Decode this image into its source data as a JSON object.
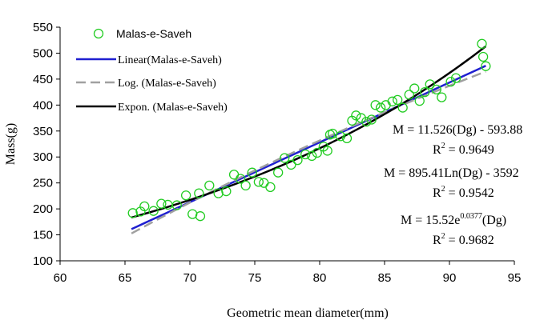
{
  "chart_data": {
    "type": "scatter",
    "xlabel": "Geometric mean diameter(mm)",
    "ylabel": "Mass(g)",
    "xlim": [
      60,
      95
    ],
    "ylim": [
      100,
      550
    ],
    "x_ticks": [
      60,
      65,
      70,
      75,
      80,
      85,
      90,
      95
    ],
    "y_ticks": [
      100,
      150,
      200,
      250,
      300,
      350,
      400,
      450,
      500,
      550
    ],
    "grid": false,
    "legend_placement": "top-left",
    "series": [
      {
        "name": "Malas-e-Saveh",
        "kind": "points",
        "marker": "open-circle",
        "color": "#22cc22",
        "points": [
          [
            65.6,
            192
          ],
          [
            66.2,
            195
          ],
          [
            66.5,
            205
          ],
          [
            67.2,
            196
          ],
          [
            67.8,
            210
          ],
          [
            68.3,
            208
          ],
          [
            69.0,
            207
          ],
          [
            69.7,
            226
          ],
          [
            70.2,
            190
          ],
          [
            70.8,
            186
          ],
          [
            70.7,
            230
          ],
          [
            71.5,
            245
          ],
          [
            72.2,
            230
          ],
          [
            72.8,
            234
          ],
          [
            73.4,
            266
          ],
          [
            73.9,
            258
          ],
          [
            74.3,
            245
          ],
          [
            74.8,
            270
          ],
          [
            75.3,
            252
          ],
          [
            75.7,
            250
          ],
          [
            76.2,
            242
          ],
          [
            76.8,
            270
          ],
          [
            77.3,
            298
          ],
          [
            77.8,
            285
          ],
          [
            78.3,
            294
          ],
          [
            78.9,
            305
          ],
          [
            79.4,
            302
          ],
          [
            79.8,
            308
          ],
          [
            80.3,
            320
          ],
          [
            80.6,
            312
          ],
          [
            80.8,
            343
          ],
          [
            81.0,
            345
          ],
          [
            81.6,
            340
          ],
          [
            82.1,
            336
          ],
          [
            82.5,
            370
          ],
          [
            82.8,
            380
          ],
          [
            83.2,
            375
          ],
          [
            83.6,
            368
          ],
          [
            84.0,
            372
          ],
          [
            84.3,
            400
          ],
          [
            84.7,
            395
          ],
          [
            85.1,
            400
          ],
          [
            85.6,
            407
          ],
          [
            86.0,
            410
          ],
          [
            86.4,
            395
          ],
          [
            86.9,
            420
          ],
          [
            87.3,
            432
          ],
          [
            87.7,
            408
          ],
          [
            88.1,
            425
          ],
          [
            88.5,
            440
          ],
          [
            89.0,
            430
          ],
          [
            89.4,
            415
          ],
          [
            90.1,
            445
          ],
          [
            90.5,
            452
          ],
          [
            92.5,
            518
          ],
          [
            92.6,
            493
          ],
          [
            92.8,
            475
          ]
        ]
      },
      {
        "name": "Linear(Malas-e-Saveh)",
        "kind": "fit",
        "model": "linear",
        "a": 11.526,
        "b": -593.88,
        "color": "#1f1fd0",
        "x_range": [
          65.5,
          92.8
        ]
      },
      {
        "name": "Log. (Malas-e-Saveh)",
        "kind": "fit",
        "model": "log",
        "a": 895.41,
        "b": -3592,
        "color": "#a0a0a0",
        "dashed": true,
        "x_range": [
          65.5,
          92.8
        ]
      },
      {
        "name": "Expon. (Malas-e-Saveh)",
        "kind": "fit",
        "model": "exp",
        "a": 15.52,
        "b": 0.0377,
        "color": "#000000",
        "x_range": [
          65.5,
          92.8
        ]
      }
    ],
    "annotations": [
      {
        "line1": "M = 11.526(Dg) - 593.88",
        "line2_pre": "R",
        "line2_sup": "2",
        "line2_post": " = 0.9649"
      },
      {
        "line1": "M = 895.41Ln(Dg) - 3592",
        "line2_pre": "R",
        "line2_sup": "2",
        "line2_post": " = 0.9542"
      },
      {
        "line1_pre": "M = 15.52e",
        "line1_sup": "0.0377",
        "line1_post": "(Dg)",
        "line2_pre": "R",
        "line2_sup": "2",
        "line2_post": " = 0.9682"
      }
    ]
  }
}
